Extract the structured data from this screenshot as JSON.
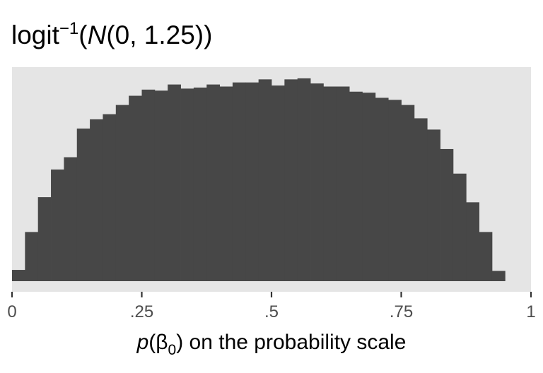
{
  "chart_data": {
    "type": "histogram",
    "title": {
      "prefix": "logit",
      "superscript": "−1",
      "open_paren": "(",
      "func": "N",
      "args": "(0, 1.25)",
      "close_paren": ")"
    },
    "xlabel": {
      "var": "p",
      "open": "(",
      "beta": "β",
      "sub": "0",
      "close": ")",
      "rest": " on the probability scale"
    },
    "ylabel": "",
    "xlim": [
      0,
      1
    ],
    "ylim": [
      0,
      1
    ],
    "y_axis_shown": false,
    "x_ticks": [
      {
        "value": 0,
        "label": "0"
      },
      {
        "value": 0.25,
        "label": ".25"
      },
      {
        "value": 0.5,
        "label": ".5"
      },
      {
        "value": 0.75,
        "label": ".75"
      },
      {
        "value": 1,
        "label": "1"
      }
    ],
    "bin_width": 0.025,
    "bins_start": 0,
    "bin_values": [
      0.055,
      0.24,
      0.41,
      0.545,
      0.605,
      0.745,
      0.79,
      0.815,
      0.86,
      0.905,
      0.935,
      0.93,
      0.96,
      0.94,
      0.945,
      0.96,
      0.95,
      0.97,
      0.97,
      0.985,
      0.955,
      0.985,
      0.99,
      0.965,
      0.95,
      0.95,
      0.925,
      0.92,
      0.895,
      0.885,
      0.86,
      0.795,
      0.74,
      0.645,
      0.525,
      0.385,
      0.24,
      0.05
    ],
    "colors": {
      "bar": "#474747",
      "panel": "#e5e5e5",
      "tick": "#333333",
      "tick_label": "#4d4d4d"
    },
    "grid": false,
    "legend": "none"
  }
}
